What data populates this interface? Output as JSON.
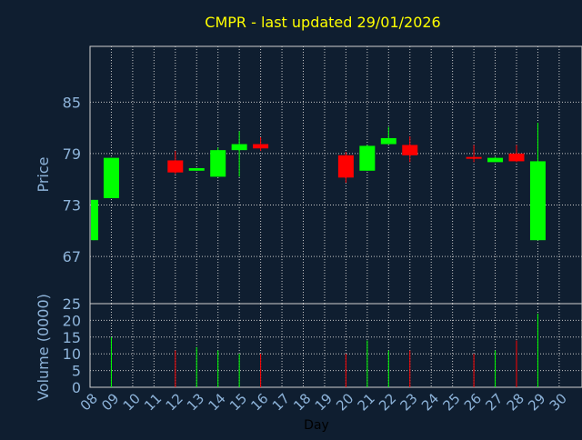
{
  "chart_data": {
    "type": "candlestick",
    "title": "CMPR - last updated 29/01/2026",
    "xlabel": "Day",
    "ylabel_price": "Price",
    "ylabel_volume": "Volume (0000)",
    "x_ticks": [
      "08",
      "09",
      "10",
      "11",
      "12",
      "13",
      "14",
      "15",
      "16",
      "17",
      "18",
      "19",
      "20",
      "21",
      "22",
      "23",
      "24",
      "25",
      "26",
      "27",
      "28",
      "29",
      "30"
    ],
    "price_ticks": [
      67,
      73,
      79,
      85
    ],
    "volume_ticks": [
      0,
      5,
      10,
      15,
      20,
      25
    ],
    "price_range": [
      61.5,
      91.5
    ],
    "volume_range": [
      0,
      25
    ],
    "grid": true,
    "candles": [
      {
        "day": "08",
        "open": 68.9,
        "high": 73.6,
        "low": 68.9,
        "close": 73.6,
        "volume": 0
      },
      {
        "day": "09",
        "open": 73.8,
        "high": 78.5,
        "low": 73.8,
        "close": 78.5,
        "volume": 15
      },
      {
        "day": "12",
        "open": 78.2,
        "high": 79.3,
        "low": 76.6,
        "close": 76.8,
        "volume": 11
      },
      {
        "day": "13",
        "open": 77.0,
        "high": 77.3,
        "low": 77.0,
        "close": 77.3,
        "volume": 12
      },
      {
        "day": "14",
        "open": 76.3,
        "high": 79.7,
        "low": 76.3,
        "close": 79.4,
        "volume": 11
      },
      {
        "day": "15",
        "open": 79.4,
        "high": 81.6,
        "low": 76.3,
        "close": 80.1,
        "volume": 10
      },
      {
        "day": "16",
        "open": 80.1,
        "high": 80.9,
        "low": 79.3,
        "close": 79.6,
        "volume": 10
      },
      {
        "day": "20",
        "open": 78.8,
        "high": 79.2,
        "low": 75.6,
        "close": 76.2,
        "volume": 10
      },
      {
        "day": "21",
        "open": 77.0,
        "high": 80.0,
        "low": 77.0,
        "close": 79.9,
        "volume": 14
      },
      {
        "day": "22",
        "open": 80.1,
        "high": 82.1,
        "low": 80.1,
        "close": 80.8,
        "volume": 11
      },
      {
        "day": "23",
        "open": 80.0,
        "high": 81.0,
        "low": 78.0,
        "close": 78.8,
        "volume": 11
      },
      {
        "day": "26",
        "open": 78.6,
        "high": 80.0,
        "low": 78.0,
        "close": 78.4,
        "volume": 10
      },
      {
        "day": "27",
        "open": 78.0,
        "high": 78.6,
        "low": 78.0,
        "close": 78.5,
        "volume": 11
      },
      {
        "day": "28",
        "open": 79.0,
        "high": 80.0,
        "low": 78.0,
        "close": 78.1,
        "volume": 14
      },
      {
        "day": "29",
        "open": 68.9,
        "high": 82.6,
        "low": 68.9,
        "close": 78.1,
        "volume": 22
      }
    ],
    "colors": {
      "background": "#0f1e30",
      "up": "#00ff00",
      "down": "#ff0000",
      "title": "#ffff00",
      "axis_text": "#8db3d9",
      "grid": "#c8c8c8",
      "frame": "#d0d0d0"
    }
  }
}
